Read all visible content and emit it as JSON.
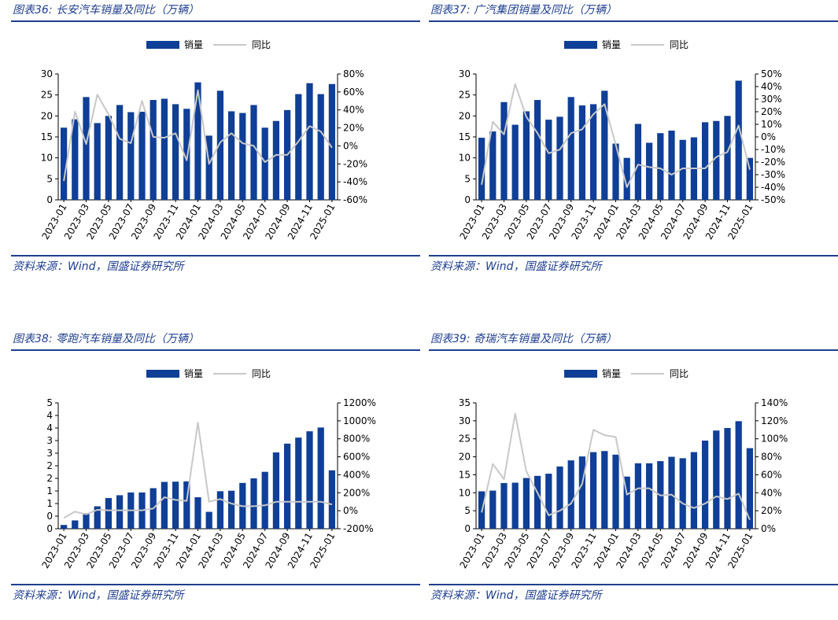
{
  "colors": {
    "bar": "#0f3f96",
    "line": "#c8c8c8",
    "title": "#1f3f8f"
  },
  "panels": [
    {
      "title": "图表36:  长安汽车销量及同比（万辆）",
      "source": "资料来源：Wind，国盛证券研究所",
      "chart_data": {
        "type": "bar",
        "legend": {
          "bar": "销量",
          "line": "同比",
          "position": "top-center"
        },
        "categories": [
          "2023-01",
          "2023-02",
          "2023-03",
          "2023-04",
          "2023-05",
          "2023-06",
          "2023-07",
          "2023-08",
          "2023-09",
          "2023-10",
          "2023-11",
          "2023-12",
          "2024-01",
          "2024-02",
          "2024-03",
          "2024-04",
          "2024-05",
          "2024-06",
          "2024-07",
          "2024-08",
          "2024-09",
          "2024-10",
          "2024-11",
          "2024-12",
          "2025-01"
        ],
        "x_tick_labels": [
          "2023-01",
          "2023-03",
          "2023-05",
          "2023-07",
          "2023-09",
          "2023-11",
          "2024-01",
          "2024-03",
          "2024-05",
          "2024-07",
          "2024-09",
          "2024-11",
          "2025-01"
        ],
        "series": [
          {
            "name": "销量",
            "axis": "left",
            "type": "bar",
            "values": [
              17.2,
              19.2,
              24.5,
              18.3,
              20.0,
              22.6,
              20.9,
              21.0,
              23.8,
              24.1,
              22.8,
              21.7,
              28.0,
              15.3,
              26.0,
              21.1,
              20.7,
              22.6,
              17.2,
              18.8,
              21.4,
              25.2,
              27.8,
              25.2,
              27.6
            ]
          },
          {
            "name": "同比",
            "axis": "right",
            "type": "line",
            "values": [
              -0.39,
              0.38,
              0.02,
              0.57,
              0.35,
              0.08,
              0.03,
              0.5,
              0.1,
              0.09,
              0.14,
              -0.16,
              0.62,
              -0.2,
              0.04,
              0.14,
              0.03,
              0.0,
              -0.18,
              -0.1,
              -0.1,
              0.05,
              0.22,
              0.16,
              -0.02
            ]
          }
        ],
        "y_left": {
          "min": 0,
          "max": 30,
          "ticks": [
            "0",
            "5",
            "10",
            "15",
            "20",
            "25",
            "30"
          ]
        },
        "y_right": {
          "min": -0.6,
          "max": 0.8,
          "ticks": [
            "-60%",
            "-40%",
            "-20%",
            "0%",
            "20%",
            "40%",
            "60%",
            "80%"
          ]
        }
      }
    },
    {
      "title": "图表37:  广汽集团销量及同比（万辆）",
      "source": "资料来源：Wind，国盛证券研究所",
      "chart_data": {
        "type": "bar",
        "legend": {
          "bar": "销量",
          "line": "同比",
          "position": "top-center"
        },
        "categories": [
          "2023-01",
          "2023-02",
          "2023-03",
          "2023-04",
          "2023-05",
          "2023-06",
          "2023-07",
          "2023-08",
          "2023-09",
          "2023-10",
          "2023-11",
          "2023-12",
          "2024-01",
          "2024-02",
          "2024-03",
          "2024-04",
          "2024-05",
          "2024-06",
          "2024-07",
          "2024-08",
          "2024-09",
          "2024-10",
          "2024-11",
          "2024-12",
          "2025-01"
        ],
        "x_tick_labels": [
          "2023-01",
          "2023-03",
          "2023-05",
          "2023-07",
          "2023-09",
          "2023-11",
          "2024-01",
          "2024-03",
          "2024-05",
          "2024-07",
          "2024-09",
          "2024-11",
          "2025-01"
        ],
        "series": [
          {
            "name": "销量",
            "axis": "left",
            "type": "bar",
            "values": [
              14.8,
              16.3,
              23.3,
              17.9,
              21.1,
              23.8,
              19.1,
              19.8,
              24.5,
              22.5,
              22.8,
              26.0,
              13.4,
              10.0,
              18.1,
              13.6,
              15.9,
              16.5,
              14.3,
              14.9,
              18.5,
              18.8,
              20.0,
              28.4,
              10.0
            ]
          },
          {
            "name": "同比",
            "axis": "right",
            "type": "line",
            "values": [
              -0.38,
              0.12,
              0.02,
              0.42,
              0.16,
              0.03,
              -0.13,
              -0.1,
              0.03,
              0.06,
              0.18,
              0.26,
              -0.06,
              -0.4,
              -0.22,
              -0.24,
              -0.25,
              -0.3,
              -0.25,
              -0.25,
              -0.25,
              -0.16,
              -0.12,
              0.09,
              -0.26
            ]
          }
        ],
        "y_left": {
          "min": 0,
          "max": 30,
          "ticks": [
            "0",
            "5",
            "10",
            "15",
            "20",
            "25",
            "30"
          ]
        },
        "y_right": {
          "min": -0.5,
          "max": 0.5,
          "ticks": [
            "-50%",
            "-40%",
            "-30%",
            "-20%",
            "-10%",
            "0%",
            "10%",
            "20%",
            "30%",
            "40%",
            "50%"
          ]
        }
      }
    },
    {
      "title": "图表38:  零跑汽车销量及同比（万辆）",
      "source": "资料来源：Wind，国盛证券研究所",
      "chart_data": {
        "type": "bar",
        "legend": {
          "bar": "销量",
          "line": "同比",
          "position": "top-center"
        },
        "categories": [
          "2023-01",
          "2023-02",
          "2023-03",
          "2023-04",
          "2023-05",
          "2023-06",
          "2023-07",
          "2023-08",
          "2023-09",
          "2023-10",
          "2023-11",
          "2023-12",
          "2024-01",
          "2024-02",
          "2024-03",
          "2024-04",
          "2024-05",
          "2024-06",
          "2024-07",
          "2024-08",
          "2024-09",
          "2024-10",
          "2024-11",
          "2024-12",
          "2025-01"
        ],
        "x_tick_labels": [
          "2023-01",
          "2023-03",
          "2023-05",
          "2023-07",
          "2023-09",
          "2023-11",
          "2024-01",
          "2024-03",
          "2024-05",
          "2024-07",
          "2024-09",
          "2024-11",
          "2025-01"
        ],
        "series": [
          {
            "name": "销量",
            "axis": "left",
            "type": "bar",
            "values": [
              0.15,
              0.33,
              0.62,
              0.89,
              1.22,
              1.33,
              1.44,
              1.44,
              1.61,
              1.86,
              1.87,
              1.88,
              1.25,
              0.67,
              1.49,
              1.51,
              1.82,
              2.0,
              2.26,
              3.03,
              3.38,
              3.62,
              3.87,
              4.02,
              2.32
            ]
          },
          {
            "name": "同比",
            "axis": "right",
            "type": "line",
            "values": [
              -0.8,
              -0.1,
              -0.4,
              0.1,
              0.05,
              0.05,
              0.05,
              0.05,
              0.25,
              1.5,
              1.2,
              1.1,
              9.8,
              1.0,
              1.3,
              0.8,
              0.5,
              0.5,
              0.6,
              1.0,
              1.0,
              1.0,
              1.0,
              1.0,
              0.7
            ]
          }
        ],
        "y_left": {
          "min": 0,
          "max": 5,
          "ticks": [
            "0",
            "0",
            "1",
            "1",
            "2",
            "2",
            "3",
            "3",
            "4",
            "4",
            "5"
          ]
        },
        "y_right": {
          "min": -2,
          "max": 12,
          "ticks": [
            "-200%",
            "0%",
            "200%",
            "400%",
            "600%",
            "800%",
            "1000%",
            "1200%"
          ]
        }
      }
    },
    {
      "title": "图表39:  奇瑞汽车销量及同比（万辆）",
      "source": "资料来源：Wind，国盛证券研究所",
      "chart_data": {
        "type": "bar",
        "legend": {
          "bar": "销量",
          "line": "同比",
          "position": "top-center"
        },
        "categories": [
          "2023-01",
          "2023-02",
          "2023-03",
          "2023-04",
          "2023-05",
          "2023-06",
          "2023-07",
          "2023-08",
          "2023-09",
          "2023-10",
          "2023-11",
          "2023-12",
          "2024-01",
          "2024-02",
          "2024-03",
          "2024-04",
          "2024-05",
          "2024-06",
          "2024-07",
          "2024-08",
          "2024-09",
          "2024-10",
          "2024-11",
          "2024-12",
          "2025-01"
        ],
        "x_tick_labels": [
          "2023-01",
          "2023-03",
          "2023-05",
          "2023-07",
          "2023-09",
          "2023-11",
          "2024-01",
          "2024-03",
          "2024-05",
          "2024-07",
          "2024-09",
          "2024-11",
          "2025-01"
        ],
        "series": [
          {
            "name": "销量",
            "axis": "left",
            "type": "bar",
            "values": [
              10.4,
              10.6,
              12.7,
              12.8,
              14.1,
              14.7,
              15.3,
              17.3,
              19.0,
              20.1,
              21.3,
              21.6,
              20.6,
              14.5,
              18.2,
              18.2,
              18.8,
              20.0,
              19.6,
              21.3,
              24.5,
              27.3,
              28.0,
              29.9,
              22.4
            ]
          },
          {
            "name": "同比",
            "axis": "right",
            "type": "line",
            "values": [
              0.18,
              0.72,
              0.55,
              1.28,
              0.64,
              0.4,
              0.15,
              0.2,
              0.28,
              0.5,
              1.1,
              1.04,
              1.02,
              0.38,
              0.45,
              0.45,
              0.37,
              0.38,
              0.28,
              0.23,
              0.28,
              0.36,
              0.33,
              0.39,
              0.1
            ]
          }
        ],
        "y_left": {
          "min": 0,
          "max": 35,
          "ticks": [
            "0",
            "5",
            "10",
            "15",
            "20",
            "25",
            "30",
            "35"
          ]
        },
        "y_right": {
          "min": 0,
          "max": 1.4,
          "ticks": [
            "0%",
            "20%",
            "40%",
            "60%",
            "80%",
            "100%",
            "120%",
            "140%"
          ]
        }
      }
    }
  ]
}
